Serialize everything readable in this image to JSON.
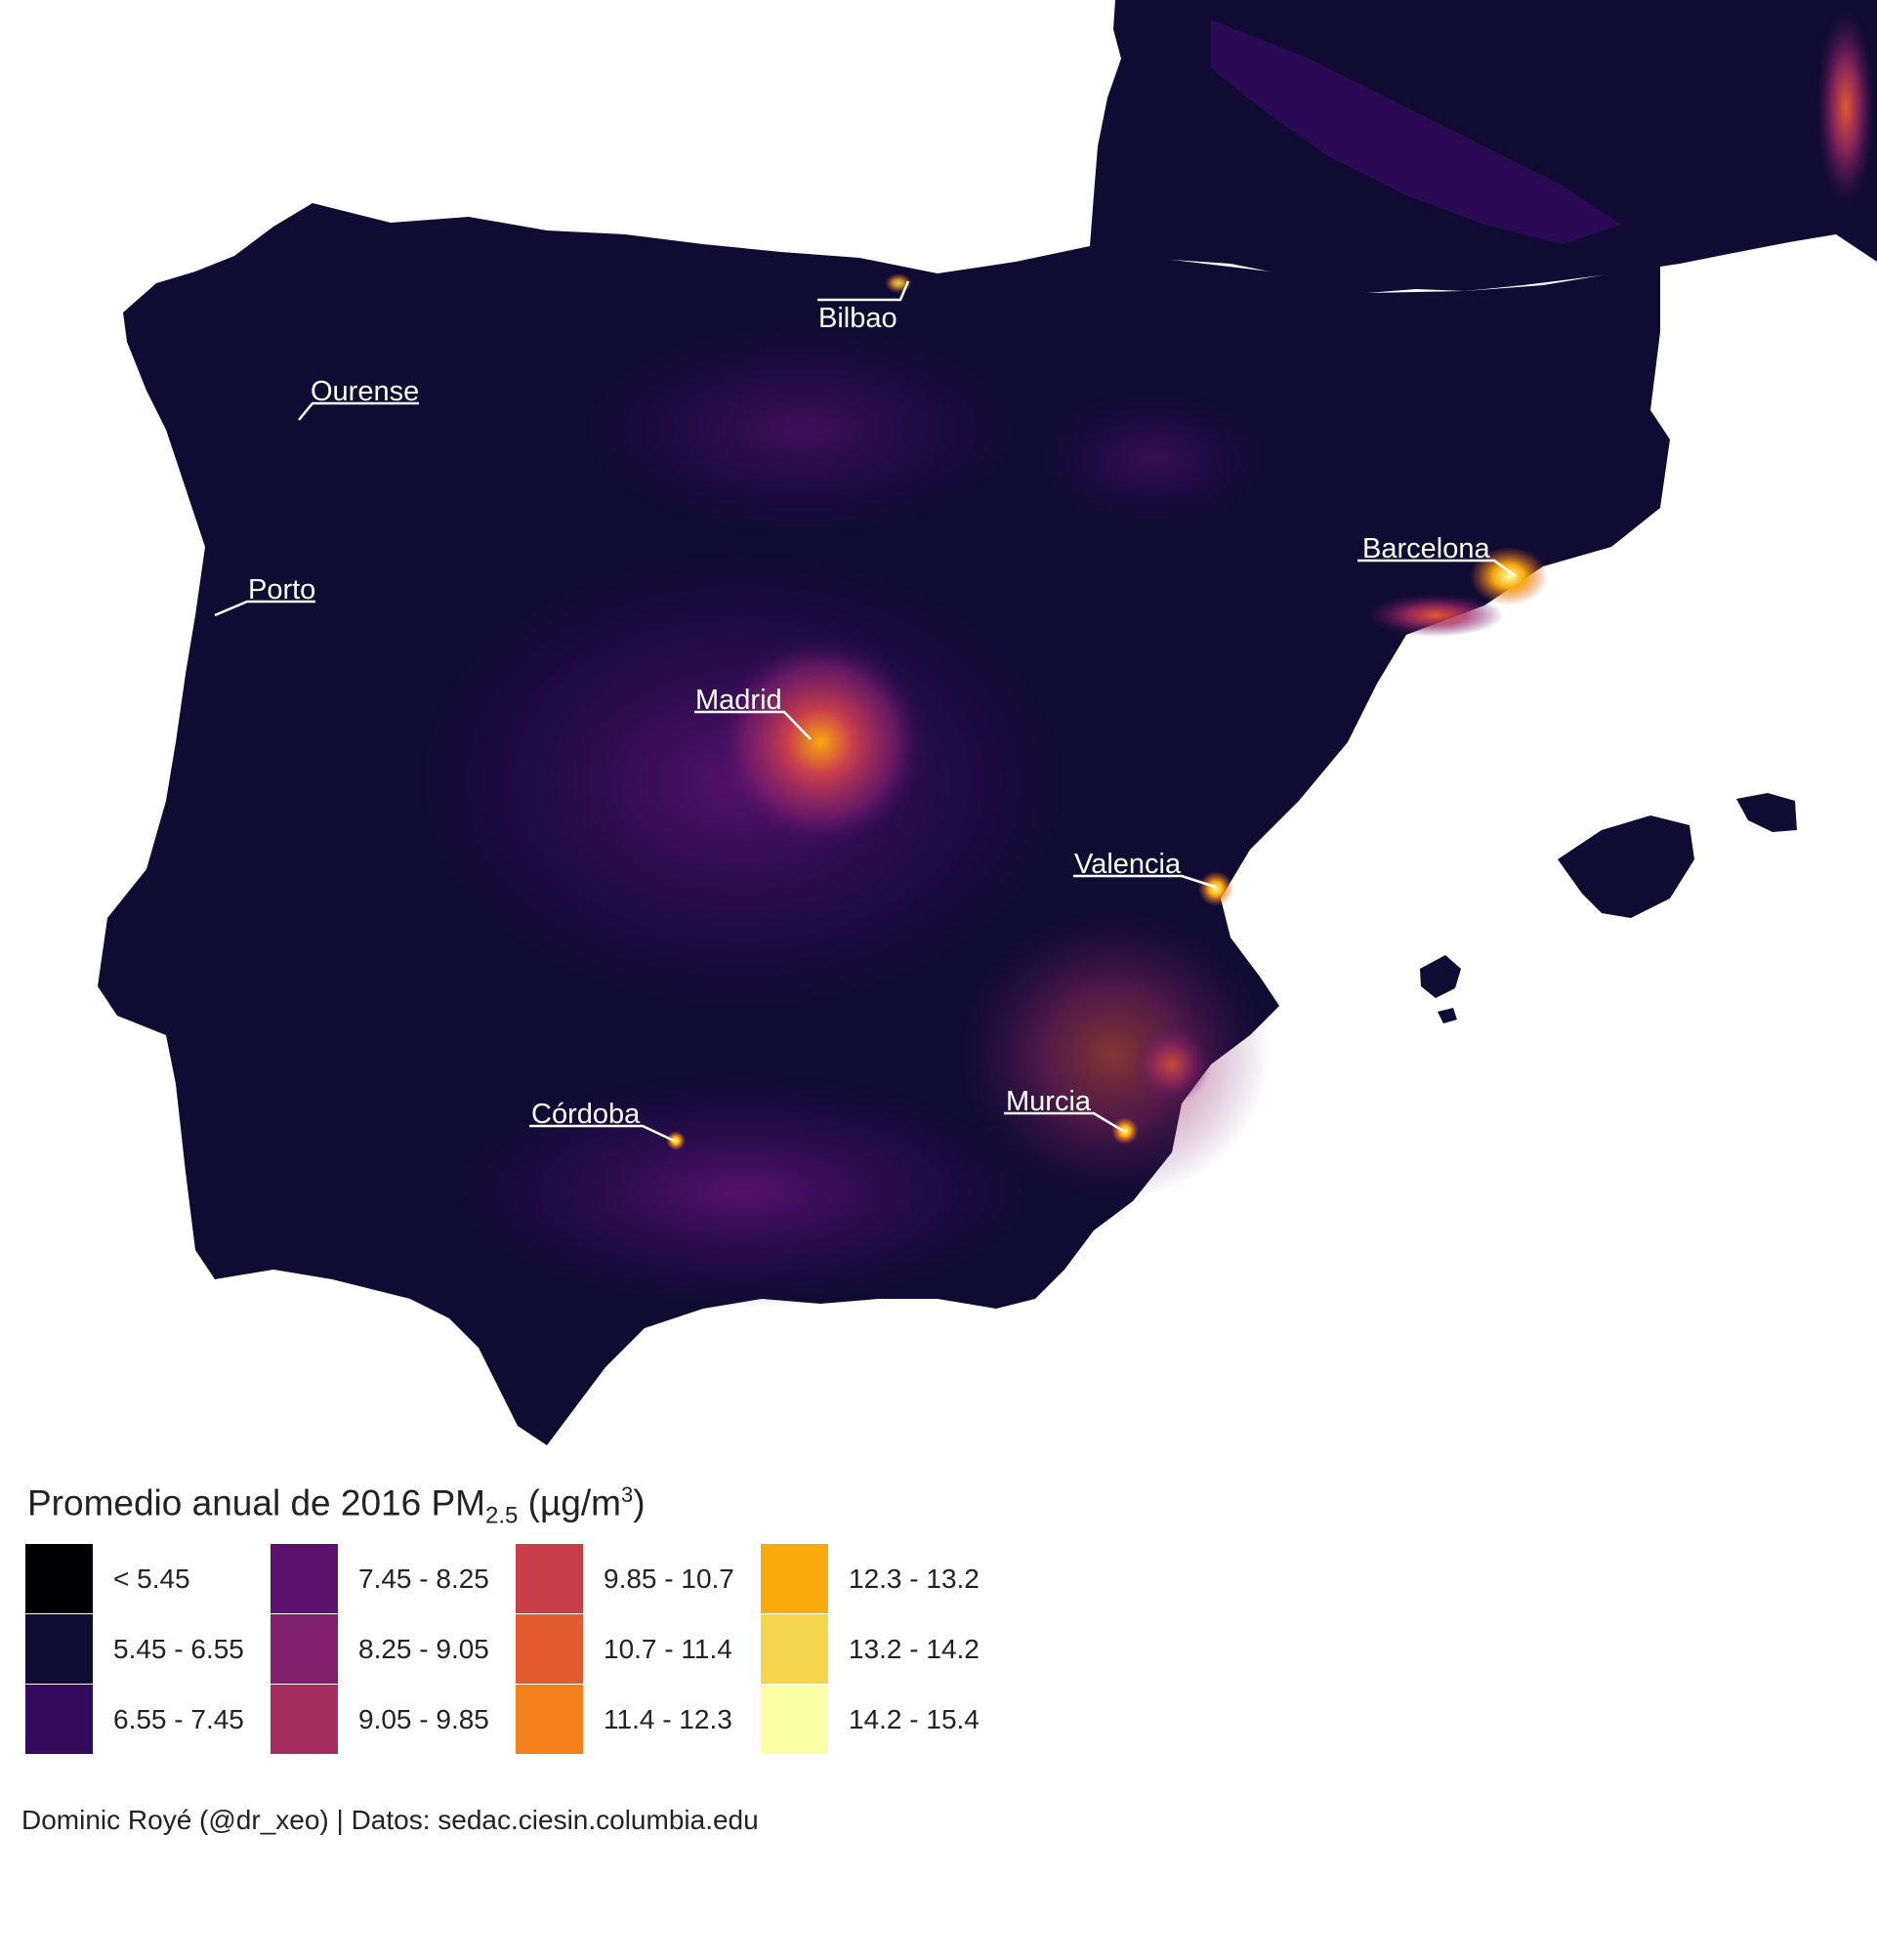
{
  "legend": {
    "title_prefix": "Promedio anual de 2016  PM",
    "title_sub": "2.5",
    "title_unit_open": " (µg/m",
    "title_sup": "3",
    "title_close": ")",
    "items": [
      {
        "label": "< 5.45",
        "color": "#000004"
      },
      {
        "label": "5.45 - 6.55",
        "color": "#0f0b33"
      },
      {
        "label": "6.55 - 7.45",
        "color": "#320a5e"
      },
      {
        "label": "7.45 - 8.25",
        "color": "#5a126e"
      },
      {
        "label": "8.25 - 9.05",
        "color": "#801f6c"
      },
      {
        "label": "9.05 - 9.85",
        "color": "#a52c60"
      },
      {
        "label": "9.85 - 10.7",
        "color": "#c93e4b"
      },
      {
        "label": "10.7 - 11.4",
        "color": "#e45a31"
      },
      {
        "label": "11.4 - 12.3",
        "color": "#f4801c"
      },
      {
        "label": "12.3 - 13.2",
        "color": "#f8a90c"
      },
      {
        "label": "13.2 - 14.2",
        "color": "#f4d54b"
      },
      {
        "label": "14.2 - 15.4",
        "color": "#fcffa4"
      }
    ]
  },
  "cities": [
    "Bilbao",
    "Ourense",
    "Porto",
    "Barcelona",
    "Madrid",
    "Valencia",
    "Córdoba",
    "Murcia"
  ],
  "caption": "Dominic Royé (@dr_xeo) | Datos: sedac.ciesin.columbia.edu"
}
